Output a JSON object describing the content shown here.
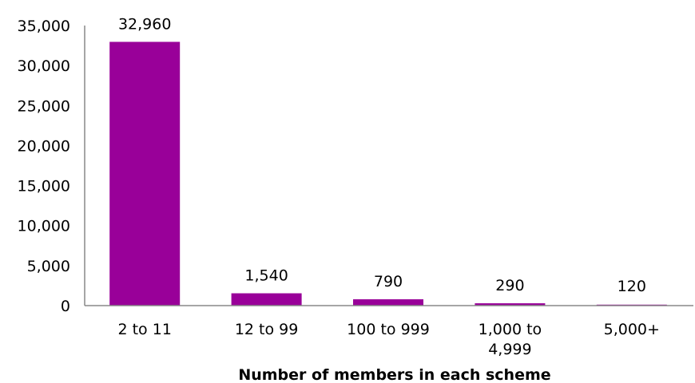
{
  "chart_data": {
    "type": "bar",
    "categories": [
      [
        "2 to 11"
      ],
      [
        "12 to 99"
      ],
      [
        "100 to 999"
      ],
      [
        "1,000 to",
        "4,999"
      ],
      [
        "5,000+"
      ]
    ],
    "values": [
      32960,
      1540,
      790,
      290,
      120
    ],
    "data_labels": [
      "32,960",
      "1,540",
      "790",
      "290",
      "120"
    ],
    "y_ticks": [
      0,
      5000,
      10000,
      15000,
      20000,
      25000,
      30000,
      35000
    ],
    "y_tick_labels": [
      "0",
      "5,000",
      "10,000",
      "15,000",
      "20,000",
      "25,000",
      "30,000",
      "35,000"
    ],
    "ylim": [
      0,
      35000
    ],
    "xlabel": "Number of members in each scheme",
    "ylabel": "",
    "title": "",
    "grid": false,
    "legend": "none",
    "bar_color": "#990099"
  }
}
